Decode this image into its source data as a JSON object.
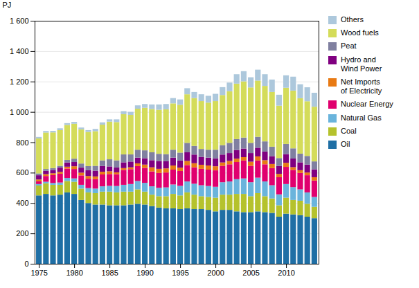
{
  "chart_data": {
    "type": "bar",
    "stacked": true,
    "ylabel": "PJ",
    "x": [
      1975,
      1976,
      1977,
      1978,
      1979,
      1980,
      1981,
      1982,
      1983,
      1984,
      1985,
      1986,
      1987,
      1988,
      1989,
      1990,
      1991,
      1992,
      1993,
      1994,
      1995,
      1996,
      1997,
      1998,
      1999,
      2000,
      2001,
      2002,
      2003,
      2004,
      2005,
      2006,
      2007,
      2008,
      2009,
      2010,
      2011,
      2012,
      2013,
      2014
    ],
    "series": [
      {
        "name": "Oil",
        "color": "#1f6fa5",
        "values": [
          450,
          460,
          450,
          455,
          470,
          460,
          420,
          400,
          390,
          390,
          385,
          385,
          385,
          390,
          395,
          390,
          380,
          370,
          365,
          365,
          360,
          365,
          360,
          360,
          355,
          345,
          355,
          355,
          345,
          340,
          340,
          345,
          340,
          335,
          310,
          330,
          325,
          320,
          310,
          300
        ]
      },
      {
        "name": "Coal",
        "color": "#b5c22d",
        "values": [
          65,
          70,
          70,
          65,
          75,
          80,
          75,
          70,
          75,
          85,
          90,
          85,
          90,
          85,
          95,
          85,
          75,
          75,
          80,
          95,
          90,
          105,
          95,
          85,
          85,
          90,
          100,
          100,
          115,
          120,
          105,
          120,
          105,
          95,
          75,
          105,
          95,
          95,
          85,
          75
        ]
      },
      {
        "name": "Natural Gas",
        "color": "#6ab4dc",
        "values": [
          10,
          10,
          12,
          15,
          20,
          22,
          25,
          28,
          30,
          35,
          38,
          42,
          45,
          50,
          55,
          58,
          55,
          55,
          58,
          62,
          63,
          72,
          72,
          72,
          72,
          72,
          82,
          87,
          97,
          102,
          92,
          102,
          97,
          87,
          72,
          90,
          85,
          75,
          75,
          65
        ]
      },
      {
        "name": "Nuclear Energy",
        "color": "#e0006e",
        "values": [
          18,
          38,
          52,
          58,
          62,
          62,
          62,
          62,
          62,
          78,
          78,
          78,
          98,
          98,
          98,
          98,
          98,
          98,
          98,
          98,
          98,
          108,
          108,
          108,
          108,
          108,
          108,
          113,
          113,
          118,
          108,
          113,
          113,
          113,
          113,
          113,
          113,
          108,
          113,
          108
        ]
      },
      {
        "name": "Net Imports\nof Electricity",
        "color": "#e87a14",
        "values": [
          12,
          12,
          12,
          12,
          12,
          18,
          18,
          18,
          18,
          18,
          18,
          12,
          12,
          12,
          18,
          22,
          27,
          27,
          27,
          27,
          22,
          27,
          27,
          27,
          27,
          27,
          22,
          22,
          22,
          22,
          27,
          27,
          27,
          27,
          22,
          27,
          18,
          18,
          18,
          22
        ]
      },
      {
        "name": "Hydro and\nWind Power",
        "color": "#800080",
        "values": [
          28,
          22,
          22,
          28,
          28,
          28,
          33,
          38,
          38,
          38,
          32,
          32,
          38,
          38,
          38,
          42,
          47,
          52,
          47,
          52,
          47,
          57,
          57,
          52,
          52,
          52,
          52,
          52,
          57,
          57,
          57,
          57,
          57,
          52,
          52,
          57,
          57,
          52,
          52,
          52
        ]
      },
      {
        "name": "Peat",
        "color": "#8080a0",
        "values": [
          12,
          12,
          12,
          12,
          17,
          22,
          27,
          27,
          32,
          37,
          47,
          47,
          52,
          47,
          52,
          52,
          52,
          47,
          47,
          52,
          52,
          62,
          57,
          52,
          52,
          57,
          62,
          67,
          72,
          72,
          67,
          72,
          67,
          62,
          52,
          67,
          67,
          57,
          57,
          52
        ]
      },
      {
        "name": "Wood fuels",
        "color": "#d4dc5a",
        "values": [
          230,
          240,
          235,
          235,
          230,
          230,
          225,
          225,
          228,
          235,
          248,
          252,
          265,
          260,
          270,
          280,
          285,
          290,
          295,
          305,
          315,
          320,
          315,
          315,
          310,
          320,
          330,
          340,
          365,
          370,
          365,
          370,
          365,
          360,
          345,
          370,
          380,
          365,
          360,
          360
        ]
      },
      {
        "name": "Others",
        "color": "#adc8dc",
        "values": [
          10,
          10,
          10,
          12,
          12,
          12,
          12,
          12,
          15,
          15,
          15,
          18,
          20,
          20,
          22,
          25,
          30,
          35,
          35,
          35,
          35,
          40,
          40,
          45,
          45,
          48,
          52,
          57,
          62,
          67,
          67,
          72,
          77,
          82,
          72,
          82,
          92,
          92,
          92,
          92
        ]
      }
    ],
    "xlim": [
      1974.4,
      2014.6
    ],
    "xticks": [
      1975,
      1980,
      1985,
      1990,
      1995,
      2000,
      2005,
      2010
    ],
    "ylim": [
      0,
      1600
    ],
    "yticks": [
      0,
      200,
      400,
      600,
      800,
      {
        "value": 1000,
        "label": "1 000"
      },
      {
        "value": 1200,
        "label": "1 200"
      },
      {
        "value": 1400,
        "label": "1 400"
      },
      {
        "value": 1600,
        "label": "1 600"
      }
    ],
    "grid": true,
    "legend": "right"
  }
}
